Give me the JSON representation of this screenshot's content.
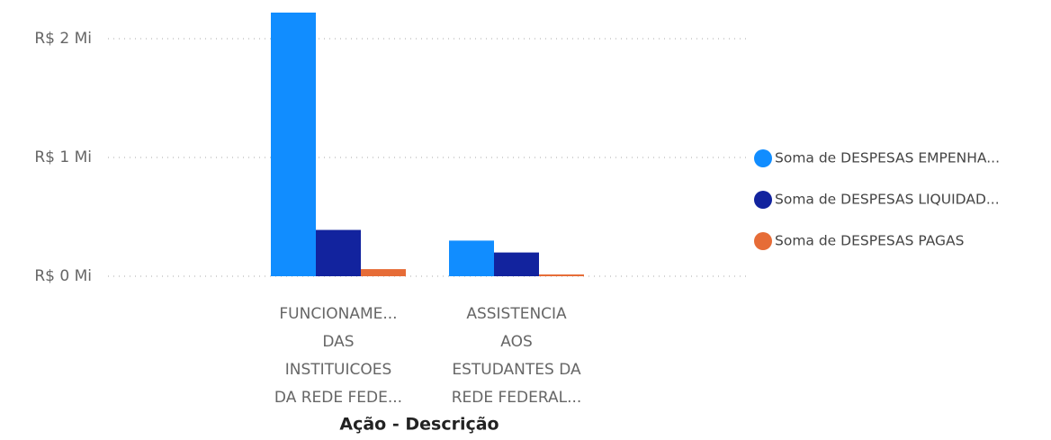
{
  "chart_data": {
    "type": "bar",
    "x_label": "Ação - Descrição",
    "categories": [
      "FUNCIONAME...\nDAS\nINSTITUICOES\nDA REDE FEDE...",
      "ASSISTENCIA\nAOS\nESTUDANTES DA\nREDE FEDERAL..."
    ],
    "series": [
      {
        "name": "Soma de DESPESAS EMPENHA...",
        "color": "#118DFF",
        "values": [
          2.22,
          0.3
        ]
      },
      {
        "name": "Soma de DESPESAS LIQUIDAD...",
        "color": "#12239E",
        "values": [
          0.39,
          0.2
        ]
      },
      {
        "name": "Soma de DESPESAS PAGAS",
        "color": "#E66C37",
        "values": [
          0.06,
          0.015
        ]
      }
    ],
    "ylim": [
      0,
      2.22
    ],
    "yticks": [
      {
        "value": 0,
        "label": "R$ 0 Mi"
      },
      {
        "value": 1,
        "label": "R$ 1 Mi"
      },
      {
        "value": 2,
        "label": "R$ 2 Mi"
      }
    ],
    "grid": true,
    "legend": "right"
  }
}
